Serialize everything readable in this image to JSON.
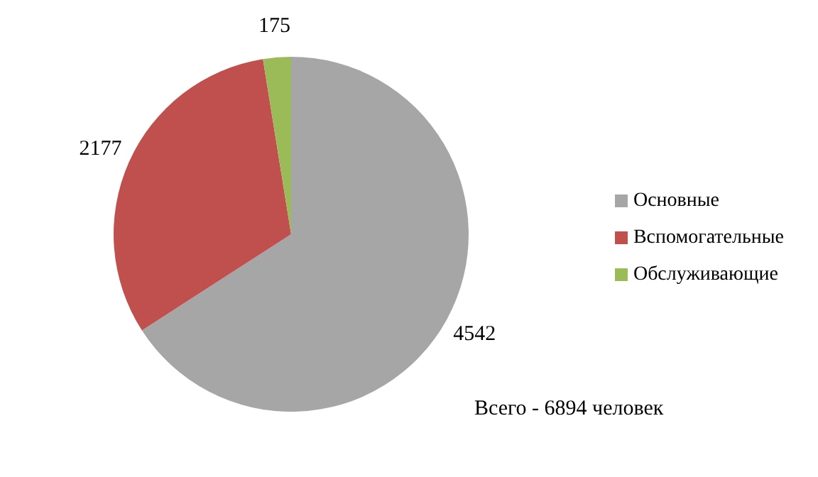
{
  "chart_data": {
    "type": "pie",
    "categories": [
      "Основные",
      "Вспомогательные",
      "Обслуживающие"
    ],
    "values": [
      4542,
      2177,
      175
    ],
    "colors": [
      "#a6a6a6",
      "#c0504d",
      "#9bbb59"
    ],
    "data_labels": true,
    "legend": "right",
    "annotations": [
      "Всего - 6894 человек"
    ]
  }
}
